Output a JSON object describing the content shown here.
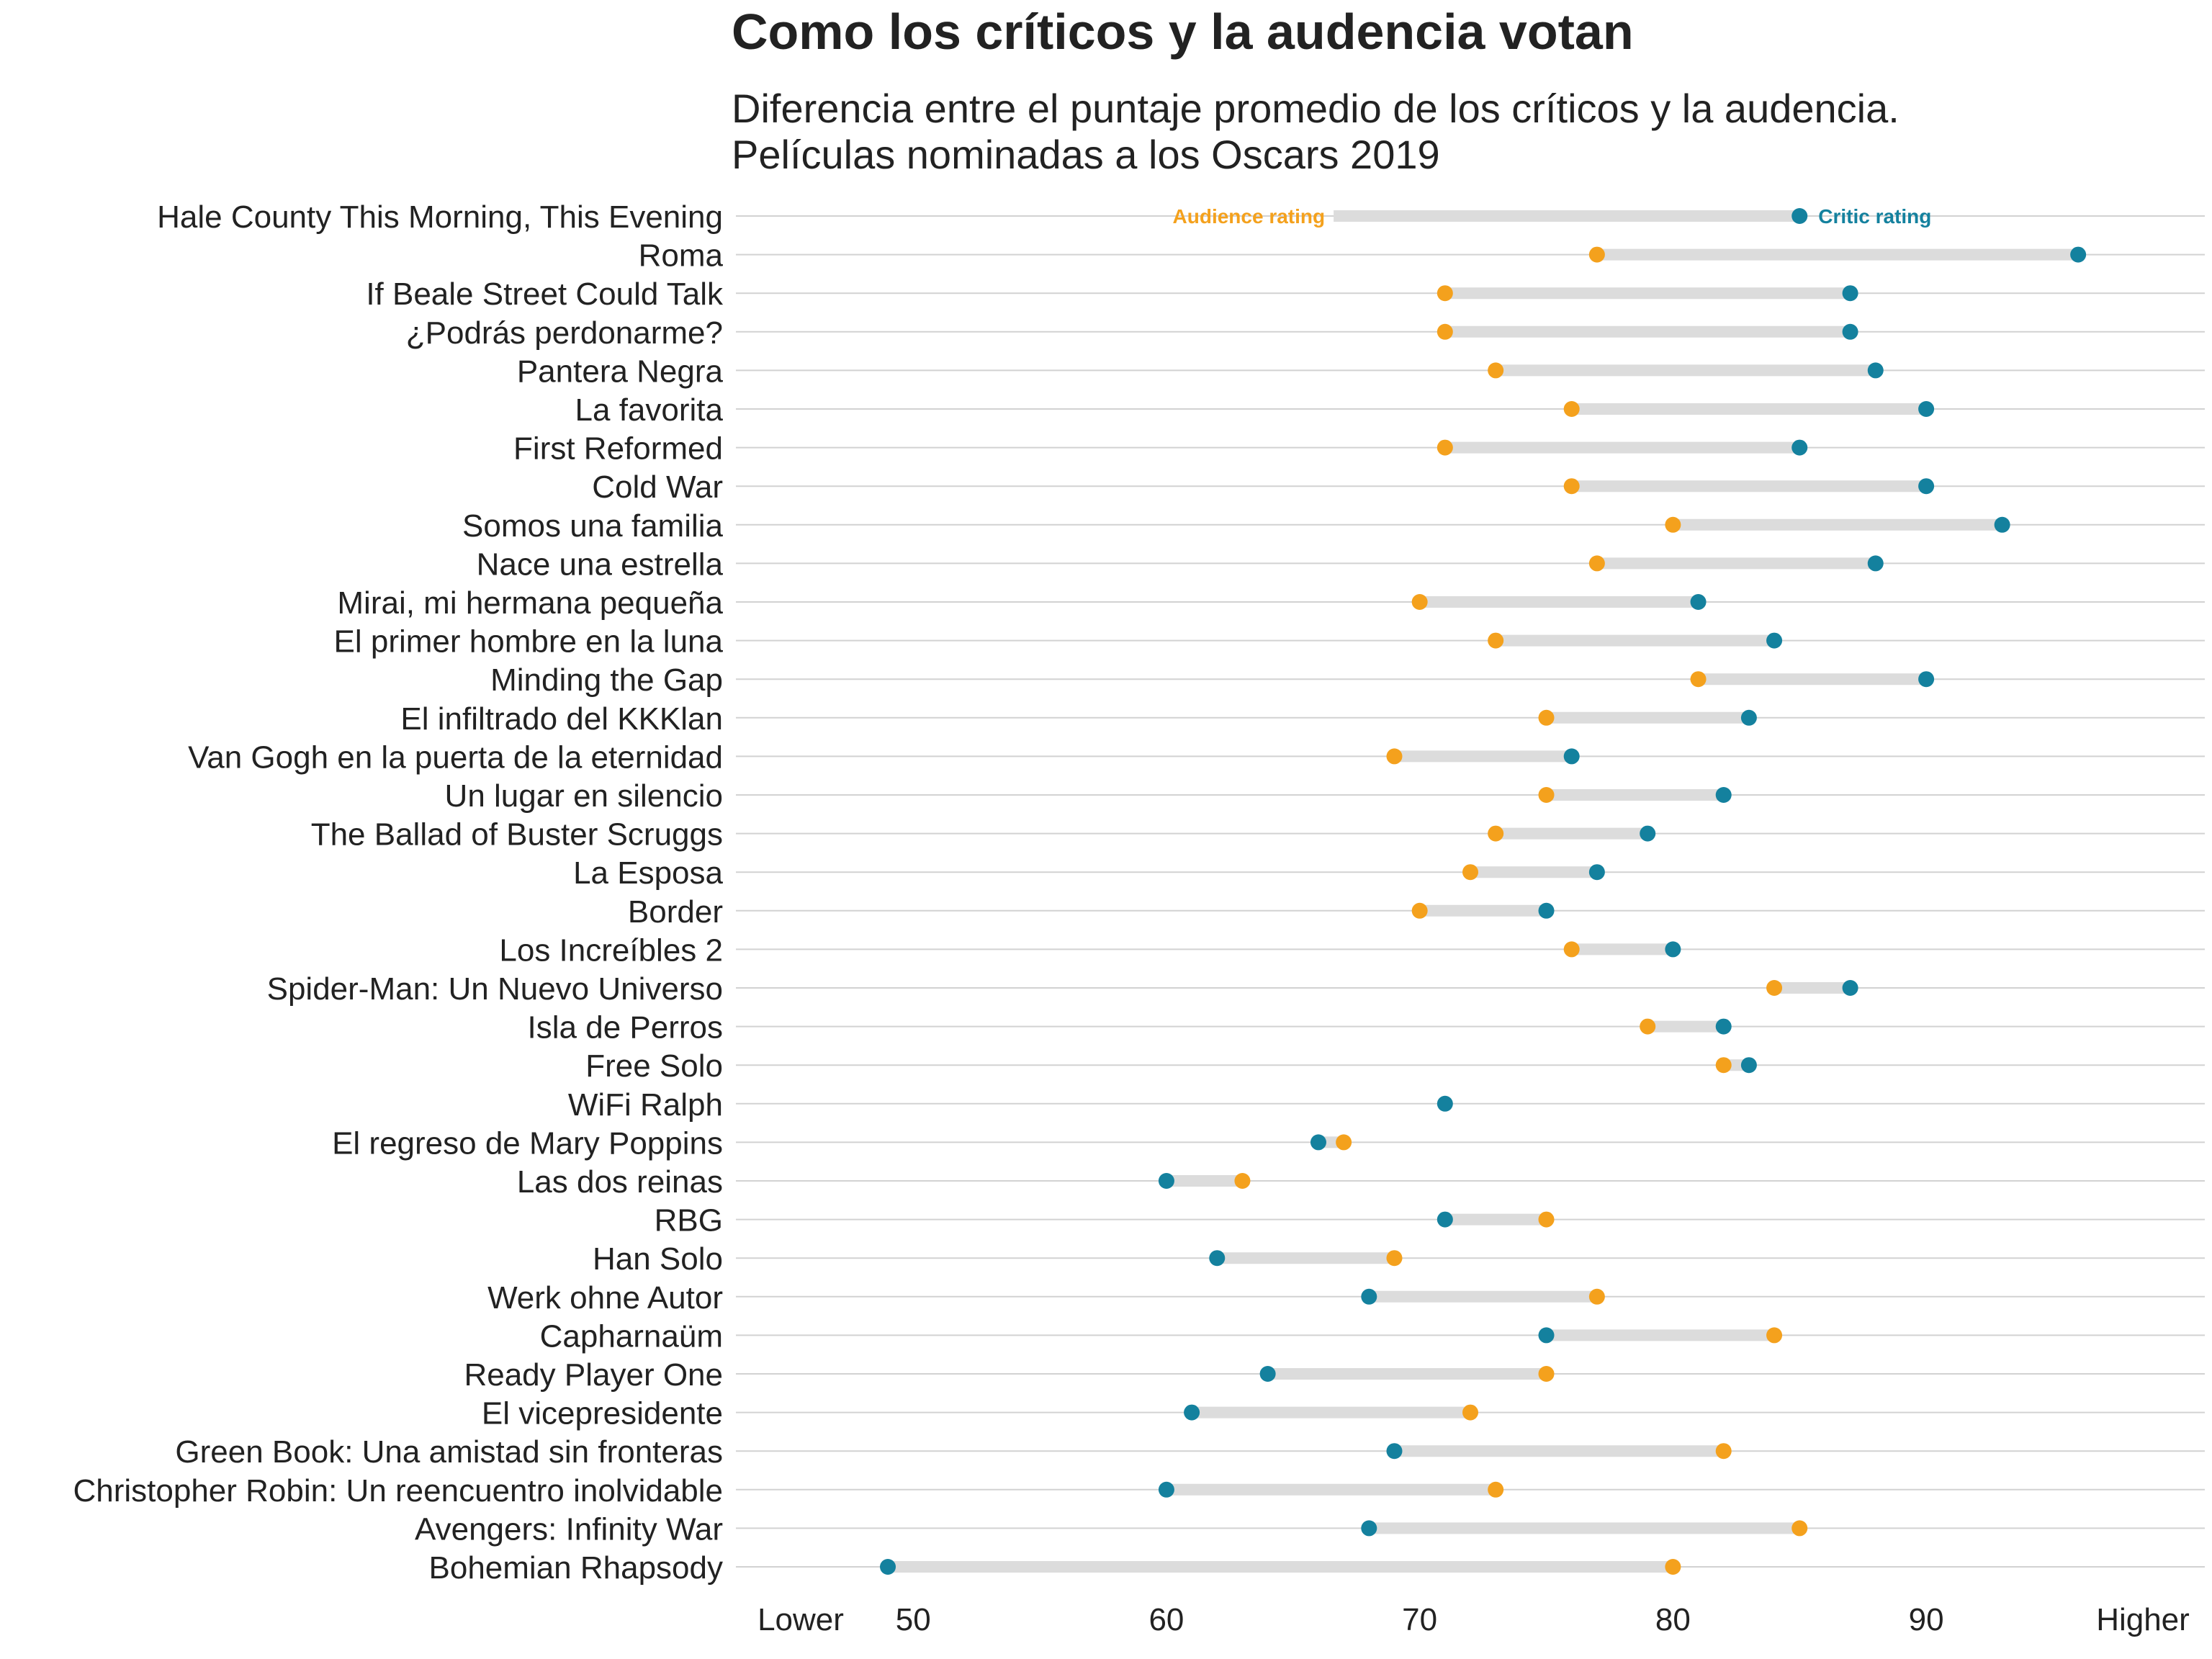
{
  "title": "Como los críticos y la audencia votan",
  "subtitle": [
    "Diferencia entre el puntaje promedio de los críticos y la audencia.",
    "Películas nominadas a los Oscars 2019"
  ],
  "colors": {
    "audience": "#F4A11D",
    "critic": "#14819E",
    "segment": "#DCDCDC",
    "grid": "#D2D2D2",
    "text": "#222222"
  },
  "chart_data": {
    "type": "dumbbell",
    "xlim": [
      43,
      101
    ],
    "x_ticks": [
      50,
      60,
      70,
      80,
      90
    ],
    "x_end_labels": {
      "low": "Lower",
      "high": "Higher"
    },
    "grid": "horizontal",
    "legend": "inline-annotations-top-row",
    "annotations": {
      "audience": "Audience rating",
      "critic": "Critic rating"
    },
    "categories": [
      "Hale County This Morning, This Evening",
      "Roma",
      "If Beale Street Could Talk",
      "¿Podrás perdonarme?",
      "Pantera Negra",
      "La favorita",
      "First Reformed",
      "Cold War",
      "Somos una familia",
      "Nace una estrella",
      "Mirai, mi hermana pequeña",
      "El primer hombre en la luna",
      "Minding the Gap",
      "El infiltrado del KKKlan",
      "Van Gogh en la puerta de la eternidad",
      "Un lugar en silencio",
      "The Ballad of Buster Scruggs",
      "La Esposa",
      "Border",
      "Los Increíbles 2",
      "Spider-Man: Un Nuevo Universo",
      "Isla de Perros",
      "Free Solo",
      "WiFi Ralph",
      "El regreso de Mary Poppins",
      "Las dos reinas",
      "RBG",
      "Han Solo",
      "Werk ohne Autor",
      "Capharnaüm",
      "Ready Player One",
      "El vicepresidente",
      "Green Book: Una amistad sin fronteras",
      "Christopher Robin: Un reencuentro inolvidable",
      "Avengers: Infinity War",
      "Bohemian Rhapsody"
    ],
    "series": [
      {
        "name": "Audience rating",
        "values": [
          null,
          77,
          71,
          71,
          73,
          76,
          71,
          76,
          80,
          77,
          70,
          73,
          81,
          75,
          69,
          75,
          73,
          72,
          70,
          76,
          84,
          79,
          82,
          null,
          67,
          63,
          75,
          69,
          77,
          84,
          75,
          72,
          82,
          73,
          85,
          80
        ]
      },
      {
        "name": "Critic rating",
        "values": [
          85,
          96,
          87,
          87,
          88,
          90,
          85,
          90,
          93,
          88,
          81,
          84,
          90,
          83,
          76,
          82,
          79,
          77,
          75,
          80,
          87,
          82,
          83,
          71,
          66,
          60,
          71,
          62,
          68,
          75,
          64,
          61,
          69,
          60,
          68,
          49
        ]
      }
    ]
  }
}
